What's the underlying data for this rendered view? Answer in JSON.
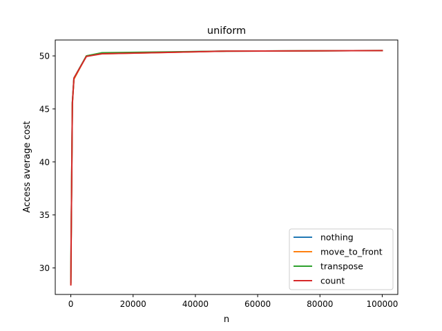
{
  "chart_data": {
    "type": "line",
    "title": "uniform",
    "xlabel": "n",
    "ylabel": "Access average cost",
    "xlim": [
      -5000,
      105000
    ],
    "ylim": [
      27.5,
      51.5
    ],
    "xticks": [
      0,
      20000,
      40000,
      60000,
      80000,
      100000
    ],
    "xtick_labels": [
      "0",
      "20000",
      "40000",
      "60000",
      "80000",
      "100000"
    ],
    "yticks": [
      30,
      35,
      40,
      45,
      50
    ],
    "ytick_labels": [
      "30",
      "35",
      "40",
      "45",
      "50"
    ],
    "legend_position": "lower-right",
    "series": [
      {
        "name": "nothing",
        "color": "#1f77b4",
        "x": [
          10,
          100,
          500,
          1000,
          5000,
          10000,
          50000,
          100000
        ],
        "y": [
          28.6,
          32.5,
          45.6,
          47.9,
          50.0,
          50.25,
          50.45,
          50.5
        ]
      },
      {
        "name": "move_to_front",
        "color": "#ff7f0e",
        "x": [
          10,
          100,
          500,
          1000,
          5000,
          10000,
          50000,
          100000
        ],
        "y": [
          28.5,
          32.4,
          45.5,
          47.8,
          50.0,
          50.2,
          50.45,
          50.5
        ]
      },
      {
        "name": "transpose",
        "color": "#2ca02c",
        "x": [
          10,
          100,
          500,
          1000,
          5000,
          10000,
          50000,
          100000
        ],
        "y": [
          28.6,
          32.5,
          45.6,
          47.9,
          50.0,
          50.3,
          50.45,
          50.5
        ]
      },
      {
        "name": "count",
        "color": "#d62728",
        "x": [
          10,
          100,
          500,
          1000,
          5000,
          10000,
          50000,
          100000
        ],
        "y": [
          28.4,
          32.3,
          45.5,
          47.9,
          49.95,
          50.2,
          50.45,
          50.5
        ]
      }
    ]
  }
}
